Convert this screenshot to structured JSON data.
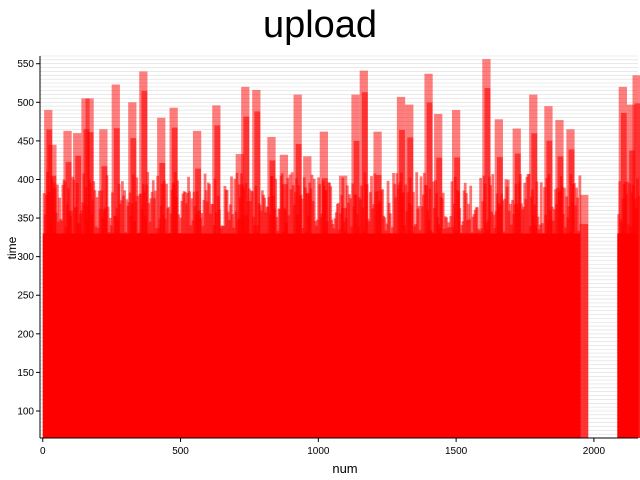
{
  "chart_data": {
    "type": "bar",
    "title": "upload",
    "xlabel": "num",
    "ylabel": "time",
    "xlim": [
      -10,
      2160
    ],
    "ylim": [
      65,
      560
    ],
    "x_ticks": [
      0,
      500,
      1000,
      1500,
      2000
    ],
    "y_ticks": [
      100,
      150,
      200,
      250,
      300,
      350,
      400,
      450,
      500,
      550
    ],
    "grid": "horizontal",
    "bar_color": "#ff0000",
    "series": [
      {
        "x_range": [
          0,
          1950
        ],
        "peak_values": [
          {
            "x": 5,
            "y": 490
          },
          {
            "x": 20,
            "y": 445
          },
          {
            "x": 75,
            "y": 463
          },
          {
            "x": 110,
            "y": 460
          },
          {
            "x": 140,
            "y": 505
          },
          {
            "x": 155,
            "y": 505
          },
          {
            "x": 205,
            "y": 465
          },
          {
            "x": 250,
            "y": 523
          },
          {
            "x": 310,
            "y": 500
          },
          {
            "x": 350,
            "y": 540
          },
          {
            "x": 415,
            "y": 480
          },
          {
            "x": 460,
            "y": 493
          },
          {
            "x": 545,
            "y": 463
          },
          {
            "x": 615,
            "y": 496
          },
          {
            "x": 700,
            "y": 433
          },
          {
            "x": 720,
            "y": 520
          },
          {
            "x": 760,
            "y": 516
          },
          {
            "x": 815,
            "y": 455
          },
          {
            "x": 860,
            "y": 432
          },
          {
            "x": 910,
            "y": 510
          },
          {
            "x": 945,
            "y": 430
          },
          {
            "x": 1005,
            "y": 462
          },
          {
            "x": 1075,
            "y": 405
          },
          {
            "x": 1120,
            "y": 510
          },
          {
            "x": 1150,
            "y": 541
          },
          {
            "x": 1200,
            "y": 462
          },
          {
            "x": 1285,
            "y": 507
          },
          {
            "x": 1315,
            "y": 497
          },
          {
            "x": 1385,
            "y": 537
          },
          {
            "x": 1420,
            "y": 485
          },
          {
            "x": 1485,
            "y": 490
          },
          {
            "x": 1595,
            "y": 556
          },
          {
            "x": 1640,
            "y": 478
          },
          {
            "x": 1705,
            "y": 466
          },
          {
            "x": 1765,
            "y": 510
          },
          {
            "x": 1820,
            "y": 495
          },
          {
            "x": 1860,
            "y": 477
          },
          {
            "x": 1900,
            "y": 465
          },
          {
            "x": 1950,
            "y": 380
          }
        ]
      },
      {
        "x_range": [
          2085,
          2160
        ],
        "peak_values": [
          {
            "x": 2090,
            "y": 520
          },
          {
            "x": 2120,
            "y": 497
          },
          {
            "x": 2140,
            "y": 535
          }
        ]
      }
    ]
  }
}
